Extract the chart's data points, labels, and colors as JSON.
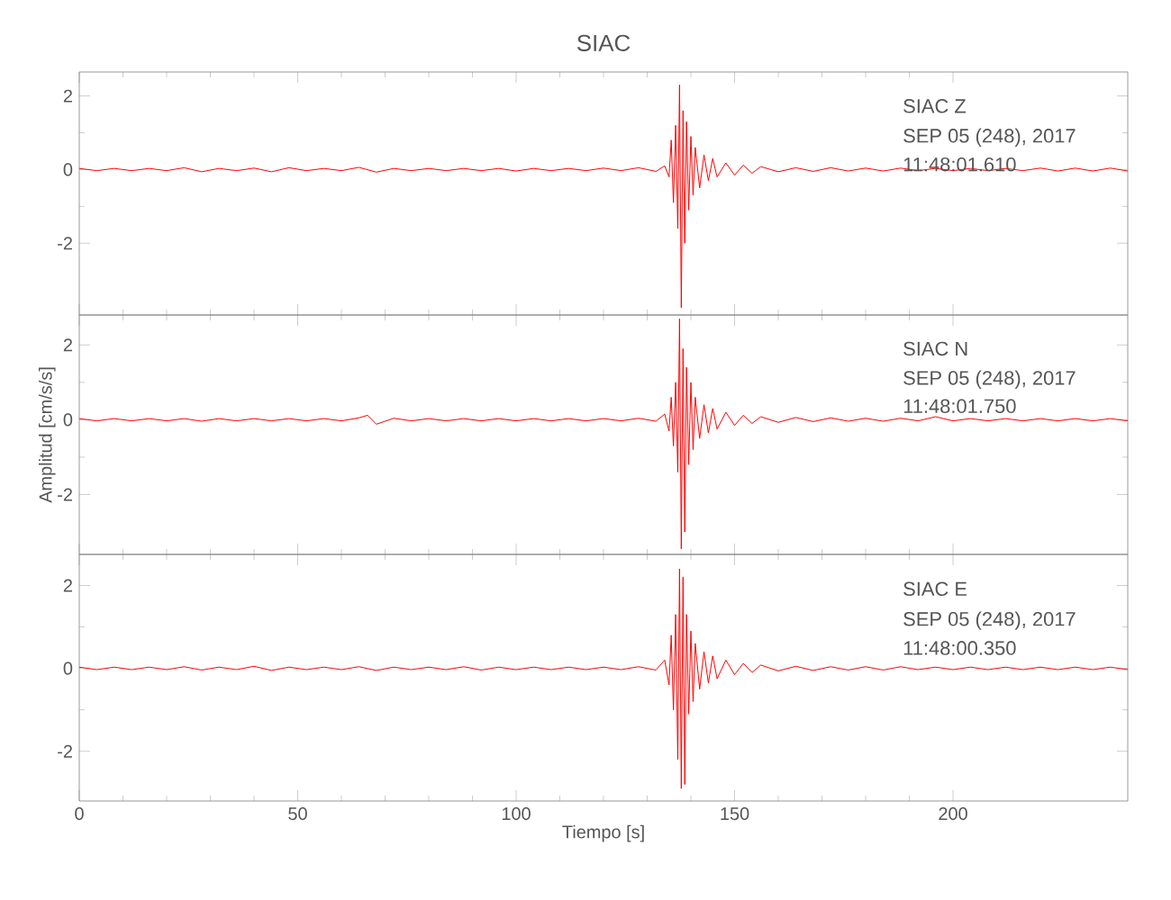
{
  "chart_data": [
    {
      "type": "line",
      "title": "SIAC",
      "annotations": [
        "SIAC Z",
        "SEP 05 (248), 2017",
        "11:48:01.610"
      ],
      "xlim": [
        0,
        240
      ],
      "ylim": [
        -3.95,
        2.65
      ],
      "xticks": [
        0,
        50,
        100,
        150,
        200
      ],
      "yticks": [
        -2,
        0,
        2
      ],
      "tick_labels": "y",
      "series": [
        {
          "color": "#ff0000",
          "x": [
            0,
            4,
            8,
            12,
            16,
            20,
            24,
            28,
            32,
            36,
            40,
            44,
            48,
            52,
            56,
            60,
            64,
            68,
            72,
            76,
            80,
            84,
            88,
            92,
            96,
            100,
            104,
            108,
            112,
            116,
            120,
            124,
            128,
            132,
            134,
            135,
            135.5,
            136,
            136.5,
            137,
            137.4,
            137.8,
            138.2,
            138.6,
            139,
            139.5,
            140,
            140.5,
            141,
            142,
            143,
            144,
            145,
            146,
            148,
            150,
            152,
            154,
            156,
            160,
            164,
            168,
            172,
            176,
            180,
            184,
            188,
            192,
            196,
            200,
            204,
            208,
            212,
            216,
            220,
            224,
            228,
            232,
            236,
            240
          ],
          "values": [
            0.03,
            -0.03,
            0.03,
            -0.03,
            0.03,
            -0.03,
            0.05,
            -0.06,
            0.03,
            -0.03,
            0.04,
            -0.06,
            0.05,
            -0.03,
            0.03,
            -0.03,
            0.06,
            -0.07,
            0.03,
            -0.03,
            0.03,
            -0.03,
            0.03,
            -0.03,
            0.03,
            -0.04,
            0.03,
            -0.03,
            0.03,
            -0.03,
            0.04,
            -0.03,
            0.05,
            -0.05,
            0.1,
            -0.2,
            0.8,
            -0.9,
            1.2,
            -1.6,
            2.3,
            -3.75,
            1.6,
            -2.0,
            1.3,
            -1.1,
            0.9,
            -0.7,
            0.6,
            -0.5,
            0.4,
            -0.3,
            0.3,
            -0.2,
            0.18,
            -0.15,
            0.12,
            -0.1,
            0.08,
            -0.06,
            0.05,
            -0.05,
            0.05,
            -0.04,
            0.04,
            -0.04,
            0.04,
            -0.03,
            0.03,
            -0.03,
            0.03,
            -0.03,
            0.03,
            -0.03,
            0.04,
            -0.04,
            0.04,
            -0.04,
            0.04,
            -0.04
          ]
        }
      ]
    },
    {
      "type": "line",
      "ylabel": "Amplitud [cm/s/s]",
      "annotations": [
        "SIAC N",
        "SEP 05 (248), 2017",
        "11:48:01.750"
      ],
      "xlim": [
        0,
        240
      ],
      "ylim": [
        -3.6,
        2.8
      ],
      "xticks": [
        0,
        50,
        100,
        150,
        200
      ],
      "yticks": [
        -2,
        0,
        2
      ],
      "tick_labels": "y",
      "series": [
        {
          "color": "#ff0000",
          "x": [
            0,
            4,
            8,
            12,
            16,
            20,
            24,
            28,
            32,
            36,
            40,
            44,
            48,
            52,
            56,
            60,
            64,
            66,
            68,
            72,
            76,
            80,
            84,
            88,
            92,
            96,
            100,
            104,
            108,
            112,
            116,
            120,
            124,
            128,
            132,
            134,
            135,
            135.5,
            136,
            136.5,
            137,
            137.4,
            137.8,
            138.2,
            138.6,
            139,
            139.5,
            140,
            140.5,
            141,
            142,
            143,
            144,
            145,
            146,
            148,
            150,
            152,
            154,
            156,
            160,
            164,
            168,
            172,
            176,
            180,
            184,
            188,
            192,
            196,
            200,
            204,
            208,
            212,
            216,
            220,
            224,
            228,
            232,
            236,
            240
          ],
          "values": [
            0.03,
            -0.03,
            0.03,
            -0.03,
            0.03,
            -0.03,
            0.03,
            -0.04,
            0.03,
            -0.03,
            0.03,
            -0.03,
            0.03,
            -0.03,
            0.03,
            -0.03,
            0.05,
            0.12,
            -0.12,
            0.04,
            -0.03,
            0.03,
            -0.03,
            0.03,
            -0.03,
            0.03,
            -0.03,
            0.03,
            -0.03,
            0.03,
            -0.03,
            0.03,
            -0.03,
            0.04,
            -0.04,
            0.15,
            -0.3,
            0.6,
            -0.7,
            1.0,
            -1.4,
            2.7,
            -3.45,
            1.9,
            -3.0,
            1.4,
            -1.2,
            1.0,
            -0.8,
            0.6,
            -0.5,
            0.4,
            -0.35,
            0.3,
            -0.25,
            0.2,
            -0.15,
            0.12,
            -0.1,
            0.08,
            -0.07,
            0.06,
            -0.05,
            0.05,
            -0.04,
            0.04,
            -0.04,
            0.04,
            -0.03,
            0.08,
            -0.03,
            0.03,
            -0.03,
            0.03,
            -0.03,
            0.03,
            -0.03,
            0.03,
            -0.03,
            0.03,
            -0.03
          ]
        }
      ]
    },
    {
      "type": "line",
      "xlabel": "Tiempo [s]",
      "annotations": [
        "SIAC E",
        "SEP 05 (248), 2017",
        "11:48:00.350"
      ],
      "xlim": [
        0,
        240
      ],
      "ylim": [
        -3.2,
        2.75
      ],
      "xticks": [
        0,
        50,
        100,
        150,
        200
      ],
      "yticks": [
        -2,
        0,
        2
      ],
      "series": [
        {
          "color": "#ff0000",
          "x": [
            0,
            4,
            8,
            12,
            16,
            20,
            24,
            28,
            32,
            36,
            40,
            44,
            48,
            52,
            56,
            60,
            64,
            68,
            72,
            76,
            80,
            84,
            88,
            92,
            96,
            100,
            104,
            108,
            112,
            116,
            120,
            124,
            128,
            132,
            134,
            135,
            135.5,
            136,
            136.5,
            137,
            137.4,
            137.8,
            138.2,
            138.6,
            139,
            139.5,
            140,
            140.5,
            141,
            142,
            143,
            144,
            145,
            146,
            148,
            150,
            152,
            154,
            156,
            160,
            164,
            168,
            172,
            176,
            180,
            184,
            188,
            192,
            196,
            200,
            204,
            208,
            212,
            216,
            220,
            224,
            228,
            232,
            236,
            240
          ],
          "values": [
            0.03,
            -0.03,
            0.03,
            -0.03,
            0.03,
            -0.03,
            0.04,
            -0.04,
            0.03,
            -0.03,
            0.05,
            -0.05,
            0.03,
            -0.03,
            0.03,
            -0.03,
            0.04,
            -0.05,
            0.03,
            -0.03,
            0.03,
            -0.03,
            0.04,
            -0.04,
            0.03,
            -0.03,
            0.03,
            -0.03,
            0.03,
            -0.03,
            0.03,
            -0.03,
            0.04,
            -0.04,
            0.2,
            -0.4,
            0.8,
            -1.0,
            1.3,
            -2.2,
            2.4,
            -2.9,
            2.2,
            -2.8,
            1.3,
            -1.1,
            0.9,
            -0.8,
            0.6,
            -0.5,
            0.4,
            -0.35,
            0.3,
            -0.25,
            0.2,
            -0.15,
            0.12,
            -0.1,
            0.08,
            -0.06,
            0.05,
            -0.05,
            0.04,
            -0.04,
            0.04,
            -0.04,
            0.04,
            -0.03,
            0.03,
            -0.03,
            0.03,
            -0.03,
            0.03,
            -0.03,
            0.03,
            -0.03,
            0.03,
            -0.03,
            0.03,
            -0.03
          ]
        }
      ]
    }
  ]
}
